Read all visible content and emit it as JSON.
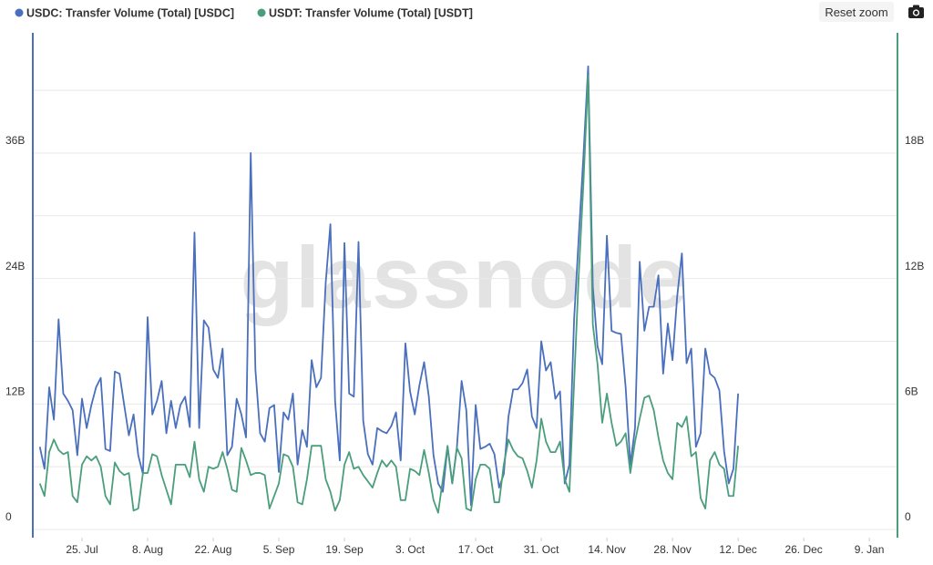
{
  "chart_data": {
    "type": "line",
    "watermark": "glassnode",
    "legend": "top-left",
    "grid": true,
    "x": [
      0,
      1,
      2,
      3,
      4,
      5,
      6,
      7,
      8,
      9,
      10,
      11,
      12,
      13,
      14,
      15,
      16,
      17,
      18,
      19,
      20,
      21,
      22,
      23,
      24,
      25,
      26,
      27,
      28,
      29,
      30,
      31,
      32,
      33,
      34,
      35,
      36,
      37,
      38,
      39,
      40,
      41,
      42,
      43,
      44,
      45,
      46,
      47,
      48,
      49,
      50,
      51,
      52,
      53,
      54,
      55,
      56,
      57,
      58,
      59,
      60,
      61,
      62,
      63,
      64,
      65,
      66,
      67,
      68,
      69,
      70,
      71,
      72,
      73,
      74,
      75,
      76,
      77,
      78,
      79,
      80,
      81,
      82,
      83,
      84,
      85,
      86,
      87,
      88,
      89,
      90,
      91,
      92,
      93,
      94,
      95,
      96,
      97,
      98,
      99,
      100,
      101,
      102,
      103,
      104,
      105,
      106,
      107,
      108,
      109,
      110,
      111,
      112,
      113,
      114,
      115,
      116,
      117,
      118,
      119,
      120,
      121,
      122,
      123,
      124,
      125,
      126,
      127,
      128,
      129,
      130,
      131,
      132,
      133,
      134,
      135,
      136,
      137,
      138,
      139,
      140,
      141,
      142,
      143,
      144,
      145,
      146,
      147,
      148,
      149
    ],
    "xlim": [
      -1.5,
      183
    ],
    "xticks": [
      {
        "value": 9,
        "label": "25. Jul"
      },
      {
        "value": 23,
        "label": "8. Aug"
      },
      {
        "value": 37,
        "label": "22. Aug"
      },
      {
        "value": 51,
        "label": "5. Sep"
      },
      {
        "value": 65,
        "label": "19. Sep"
      },
      {
        "value": 79,
        "label": "3. Oct"
      },
      {
        "value": 93,
        "label": "17. Oct"
      },
      {
        "value": 107,
        "label": "31. Oct"
      },
      {
        "value": 121,
        "label": "14. Nov"
      },
      {
        "value": 135,
        "label": "28. Nov"
      },
      {
        "value": 149,
        "label": "12. Dec"
      },
      {
        "value": 163,
        "label": "26. Dec"
      },
      {
        "value": 177,
        "label": "9. Jan"
      }
    ],
    "ylim": [
      0,
      47.5
    ],
    "yticks": [
      0,
      {
        "value": 12,
        "label": "12B"
      },
      {
        "value": 24,
        "label": "24B"
      },
      {
        "value": 36,
        "label": "36B"
      }
    ],
    "minor_grid_y": [
      6,
      18,
      30,
      42
    ],
    "y2lim": [
      0,
      23.75
    ],
    "y2ticks": [
      0,
      {
        "value": 6,
        "label": "6B"
      },
      {
        "value": 12,
        "label": "12B"
      },
      {
        "value": 18,
        "label": "18B"
      }
    ],
    "series": [
      {
        "name": "USDC: Transfer Volume (Total) [USDC]",
        "color": "#4a6fbd",
        "values": [
          7.9,
          5.8,
          13.6,
          10.5,
          20.1,
          13.0,
          12.3,
          11.4,
          7.1,
          12.5,
          9.7,
          11.9,
          13.6,
          14.5,
          7.7,
          7.5,
          15.1,
          14.9,
          11.9,
          9.0,
          11.0,
          7.1,
          5.3,
          20.3,
          11.0,
          12.3,
          14.2,
          9.2,
          12.3,
          9.7,
          11.9,
          12.7,
          9.8,
          28.4,
          9.7,
          20.0,
          19.3,
          15.3,
          14.5,
          17.3,
          7.1,
          7.9,
          12.5,
          11.0,
          8.8,
          36.0,
          15.3,
          9.2,
          8.4,
          11.6,
          11.9,
          5.5,
          11.2,
          10.5,
          13.0,
          6.2,
          9.5,
          7.9,
          16.2,
          13.6,
          14.5,
          23.6,
          29.2,
          12.3,
          6.6,
          27.4,
          13.0,
          12.7,
          27.5,
          10.4,
          7.2,
          6.2,
          9.7,
          9.4,
          9.2,
          9.9,
          11.2,
          6.6,
          17.8,
          13.2,
          11.0,
          13.8,
          16.0,
          12.7,
          7.1,
          4.4,
          3.6,
          7.9,
          4.4,
          7.9,
          14.2,
          11.4,
          2.3,
          11.9,
          7.7,
          7.9,
          8.2,
          7.2,
          4.0,
          5.3,
          10.8,
          13.4,
          13.4,
          14.0,
          15.3,
          10.8,
          9.7,
          18.0,
          15.2,
          16.0,
          12.5,
          13.2,
          4.4,
          6.2,
          20.1,
          28.0,
          35.8,
          44.3,
          23.2,
          17.5,
          15.8,
          28.1,
          19.0,
          18.8,
          18.7,
          13.6,
          6.2,
          9.7,
          25.6,
          19.0,
          21.3,
          21.3,
          24.3,
          14.9,
          19.7,
          16.2,
          22.3,
          26.4,
          15.9,
          17.3,
          7.9,
          9.2,
          17.3,
          14.9,
          14.5,
          13.3,
          7.5,
          4.4,
          5.8,
          13.0
        ]
      },
      {
        "name": "USDT: Transfer Volume (Total) [USDT]",
        "color": "#4a9e7c",
        "axis": "y2",
        "values": [
          2.2,
          1.6,
          3.7,
          4.3,
          3.8,
          3.6,
          3.7,
          1.6,
          1.3,
          3.1,
          3.5,
          3.3,
          3.5,
          3.0,
          1.6,
          1.2,
          3.2,
          2.8,
          2.6,
          2.7,
          0.9,
          1.0,
          2.7,
          2.7,
          3.6,
          3.5,
          2.6,
          1.9,
          1.2,
          3.1,
          3.1,
          3.1,
          2.5,
          4.2,
          2.4,
          1.8,
          3.0,
          2.9,
          3.0,
          3.7,
          2.9,
          1.9,
          1.8,
          3.9,
          3.3,
          2.6,
          2.7,
          2.7,
          2.6,
          1.0,
          1.6,
          2.2,
          3.6,
          3.5,
          3.0,
          1.3,
          1.2,
          2.4,
          4.0,
          4.0,
          4.0,
          2.4,
          1.8,
          0.9,
          1.4,
          3.1,
          3.7,
          2.9,
          3.0,
          2.6,
          2.3,
          2.0,
          2.7,
          3.3,
          3.0,
          3.3,
          3.0,
          1.4,
          1.4,
          2.9,
          2.8,
          2.6,
          3.8,
          2.7,
          1.4,
          0.8,
          2.4,
          4.0,
          2.2,
          3.9,
          3.4,
          1.0,
          0.9,
          2.4,
          3.1,
          3.1,
          2.9,
          1.3,
          1.3,
          3.1,
          4.3,
          3.8,
          3.5,
          3.4,
          2.8,
          2.0,
          3.3,
          5.3,
          4.2,
          3.7,
          3.7,
          4.2,
          2.4,
          1.8,
          7.0,
          12.2,
          16.6,
          21.7,
          9.8,
          7.9,
          5.1,
          6.5,
          5.1,
          4.0,
          4.2,
          4.6,
          2.7,
          4.2,
          5.3,
          6.3,
          6.4,
          5.7,
          4.4,
          3.3,
          2.7,
          2.4,
          5.1,
          4.9,
          5.4,
          3.5,
          3.7,
          1.5,
          1.0,
          3.3,
          3.7,
          3.1,
          2.9,
          1.6,
          1.6,
          4.0
        ]
      }
    ]
  },
  "ui": {
    "reset_zoom_button": "Reset zoom"
  }
}
